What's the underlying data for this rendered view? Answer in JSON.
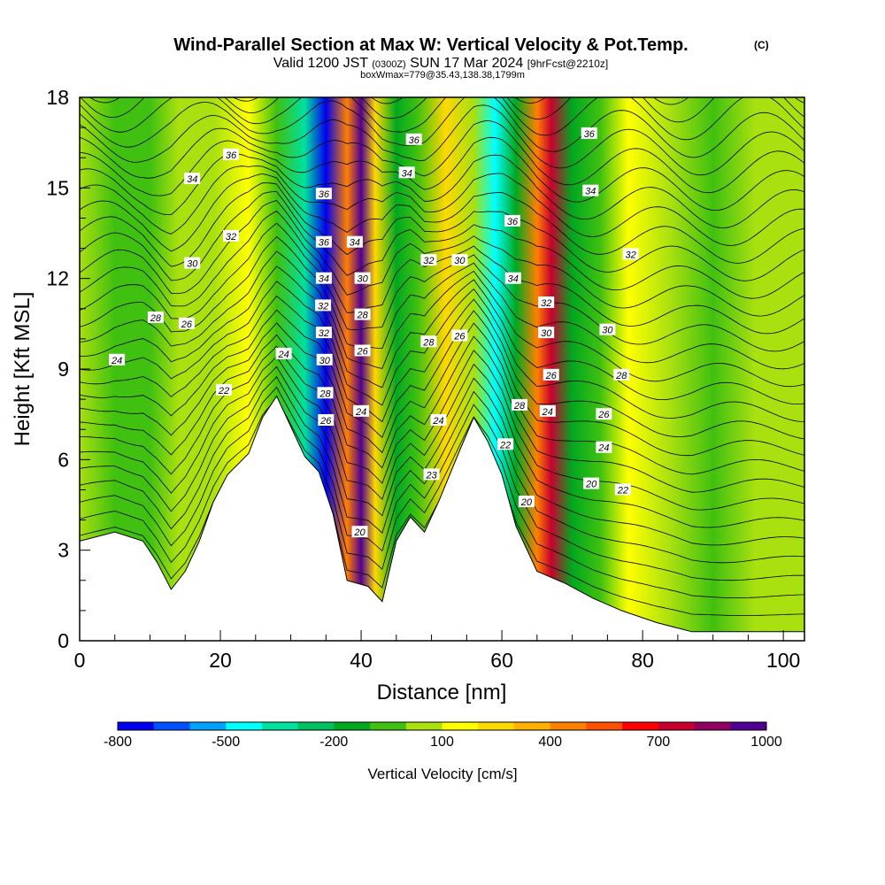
{
  "title": "Wind-Parallel Section at Max W: Vertical Velocity & Pot.Temp.",
  "title_tag": "(C)",
  "subtitle": {
    "valid": "Valid 1200 JST",
    "utc": "(0300Z)",
    "date": "SUN 17 Mar 2024",
    "fcst": "[9hrFcst@2210z]"
  },
  "box_info": "boxWmax=779@35.43,138.38,1799m",
  "chart_data": {
    "type": "contour",
    "xlabel": "Distance [nm]",
    "ylabel": "Height [Kft MSL]",
    "xlim": [
      0,
      103
    ],
    "ylim": [
      0,
      18
    ],
    "xticks": [
      0,
      20,
      40,
      60,
      80,
      100
    ],
    "yticks": [
      0,
      3,
      6,
      9,
      12,
      15,
      18
    ],
    "colorbar": {
      "title": "Vertical Velocity [cm/s]",
      "labels": [
        "-800",
        "-500",
        "-200",
        "100",
        "400",
        "700",
        "1000"
      ],
      "colors": [
        "#0000ee",
        "#0050ff",
        "#00a0ff",
        "#00ffff",
        "#00e0a0",
        "#00c060",
        "#00a820",
        "#40c010",
        "#a8e010",
        "#ffff00",
        "#ffd800",
        "#ffb000",
        "#ff8000",
        "#ff5000",
        "#ff0000",
        "#c80030",
        "#900060",
        "#500090"
      ]
    },
    "vertical_velocity_columns": [
      {
        "x": 0,
        "w": 0
      },
      {
        "x": 5,
        "w": -100
      },
      {
        "x": 10,
        "w": -60
      },
      {
        "x": 14,
        "w": 40
      },
      {
        "x": 19,
        "w": 60
      },
      {
        "x": 24,
        "w": 140
      },
      {
        "x": 28,
        "w": -50
      },
      {
        "x": 32,
        "w": -350
      },
      {
        "x": 35,
        "w": -800
      },
      {
        "x": 38,
        "w": 400
      },
      {
        "x": 40,
        "w": 1000
      },
      {
        "x": 42,
        "w": 200
      },
      {
        "x": 45,
        "w": -200
      },
      {
        "x": 48,
        "w": -60
      },
      {
        "x": 52,
        "w": 250
      },
      {
        "x": 56,
        "w": 80
      },
      {
        "x": 59,
        "w": -500
      },
      {
        "x": 62,
        "w": -150
      },
      {
        "x": 65,
        "w": 450
      },
      {
        "x": 67,
        "w": 700
      },
      {
        "x": 70,
        "w": -200
      },
      {
        "x": 74,
        "w": -100
      },
      {
        "x": 78,
        "w": 160
      },
      {
        "x": 84,
        "w": 40
      },
      {
        "x": 90,
        "w": -40
      },
      {
        "x": 96,
        "w": 0
      },
      {
        "x": 103,
        "w": 20
      }
    ],
    "terrain": [
      {
        "x": 0,
        "z": 3.3
      },
      {
        "x": 5,
        "z": 3.6
      },
      {
        "x": 9,
        "z": 3.3
      },
      {
        "x": 11,
        "z": 2.6
      },
      {
        "x": 13,
        "z": 1.7
      },
      {
        "x": 15,
        "z": 2.3
      },
      {
        "x": 17,
        "z": 3.3
      },
      {
        "x": 19,
        "z": 4.6
      },
      {
        "x": 21,
        "z": 5.5
      },
      {
        "x": 24,
        "z": 6.2
      },
      {
        "x": 26,
        "z": 7.4
      },
      {
        "x": 28,
        "z": 8.1
      },
      {
        "x": 30,
        "z": 7.1
      },
      {
        "x": 32,
        "z": 6.1
      },
      {
        "x": 34,
        "z": 5.6
      },
      {
        "x": 36,
        "z": 4.2
      },
      {
        "x": 38,
        "z": 2.0
      },
      {
        "x": 41,
        "z": 1.8
      },
      {
        "x": 43,
        "z": 1.3
      },
      {
        "x": 45,
        "z": 3.3
      },
      {
        "x": 47,
        "z": 4.1
      },
      {
        "x": 49,
        "z": 3.6
      },
      {
        "x": 51,
        "z": 4.6
      },
      {
        "x": 54,
        "z": 6.3
      },
      {
        "x": 56,
        "z": 7.4
      },
      {
        "x": 58,
        "z": 6.6
      },
      {
        "x": 60,
        "z": 5.5
      },
      {
        "x": 62,
        "z": 3.8
      },
      {
        "x": 65,
        "z": 2.3
      },
      {
        "x": 69,
        "z": 1.9
      },
      {
        "x": 73,
        "z": 1.4
      },
      {
        "x": 77,
        "z": 1.0
      },
      {
        "x": 82,
        "z": 0.6
      },
      {
        "x": 87,
        "z": 0.3
      },
      {
        "x": 103,
        "z": 0.3
      }
    ],
    "theta_contour_labels": [
      {
        "label": "36",
        "x": 21.5,
        "z": 16.1
      },
      {
        "label": "34",
        "x": 16.0,
        "z": 15.3
      },
      {
        "label": "32",
        "x": 21.5,
        "z": 13.4
      },
      {
        "label": "30",
        "x": 16.0,
        "z": 12.5
      },
      {
        "label": "28",
        "x": 10.8,
        "z": 10.7
      },
      {
        "label": "26",
        "x": 15.2,
        "z": 10.5
      },
      {
        "label": "24",
        "x": 5.3,
        "z": 9.3
      },
      {
        "label": "22",
        "x": 20.5,
        "z": 8.3
      },
      {
        "label": "24",
        "x": 29.0,
        "z": 9.5
      },
      {
        "label": "36",
        "x": 34.7,
        "z": 14.8
      },
      {
        "label": "36",
        "x": 34.7,
        "z": 13.2
      },
      {
        "label": "34",
        "x": 34.7,
        "z": 12.0
      },
      {
        "label": "32",
        "x": 34.6,
        "z": 11.1
      },
      {
        "label": "32",
        "x": 34.7,
        "z": 10.2
      },
      {
        "label": "30",
        "x": 34.8,
        "z": 9.3
      },
      {
        "label": "28",
        "x": 34.9,
        "z": 8.2
      },
      {
        "label": "26",
        "x": 35.0,
        "z": 7.3
      },
      {
        "label": "34",
        "x": 39.1,
        "z": 13.2
      },
      {
        "label": "30",
        "x": 40.2,
        "z": 12.0
      },
      {
        "label": "28",
        "x": 40.2,
        "z": 10.8
      },
      {
        "label": "26",
        "x": 40.2,
        "z": 9.6
      },
      {
        "label": "24",
        "x": 40.0,
        "z": 7.6
      },
      {
        "label": "20",
        "x": 39.8,
        "z": 3.6
      },
      {
        "label": "36",
        "x": 47.5,
        "z": 16.6
      },
      {
        "label": "34",
        "x": 46.5,
        "z": 15.5
      },
      {
        "label": "32",
        "x": 49.6,
        "z": 12.6
      },
      {
        "label": "30",
        "x": 54.0,
        "z": 12.6
      },
      {
        "label": "28",
        "x": 49.6,
        "z": 9.9
      },
      {
        "label": "26",
        "x": 54.0,
        "z": 10.1
      },
      {
        "label": "24",
        "x": 51.0,
        "z": 7.3
      },
      {
        "label": "23",
        "x": 50.0,
        "z": 5.5
      },
      {
        "label": "36",
        "x": 61.5,
        "z": 13.9
      },
      {
        "label": "34",
        "x": 61.6,
        "z": 12.0
      },
      {
        "label": "32",
        "x": 66.3,
        "z": 11.2
      },
      {
        "label": "30",
        "x": 66.3,
        "z": 10.2
      },
      {
        "label": "26",
        "x": 67.0,
        "z": 8.8
      },
      {
        "label": "24",
        "x": 66.5,
        "z": 7.6
      },
      {
        "label": "28",
        "x": 62.5,
        "z": 7.8
      },
      {
        "label": "22",
        "x": 60.5,
        "z": 6.5
      },
      {
        "label": "20",
        "x": 63.5,
        "z": 4.6
      },
      {
        "label": "36",
        "x": 72.4,
        "z": 16.8
      },
      {
        "label": "34",
        "x": 72.6,
        "z": 14.9
      },
      {
        "label": "32",
        "x": 78.3,
        "z": 12.8
      },
      {
        "label": "30",
        "x": 75.0,
        "z": 10.3
      },
      {
        "label": "28",
        "x": 77.0,
        "z": 8.8
      },
      {
        "label": "26",
        "x": 74.5,
        "z": 7.5
      },
      {
        "label": "24",
        "x": 74.5,
        "z": 6.4
      },
      {
        "label": "20",
        "x": 72.7,
        "z": 5.2
      },
      {
        "label": "22",
        "x": 77.2,
        "z": 5.0
      }
    ]
  }
}
